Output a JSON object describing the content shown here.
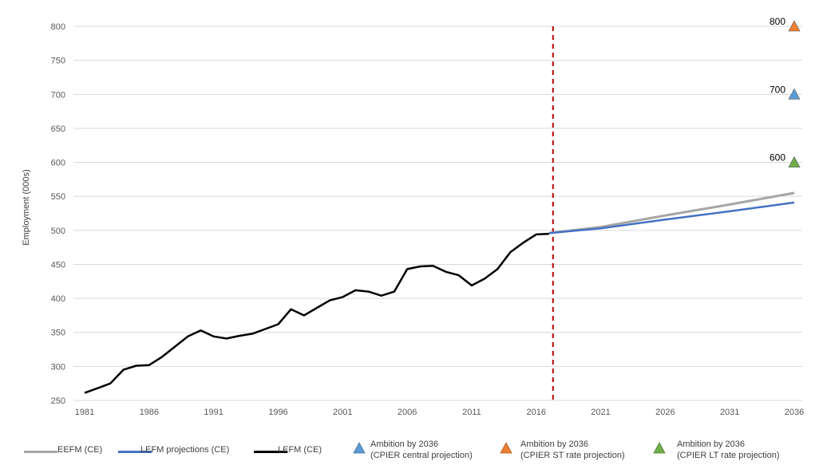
{
  "chart_data": {
    "type": "line",
    "ylabel": "Employment (000s)",
    "ylim": [
      250,
      800
    ],
    "xlim": [
      1981,
      2036
    ],
    "yticks": [
      "250",
      "300",
      "350",
      "400",
      "450",
      "500",
      "550",
      "600",
      "650",
      "700",
      "750",
      "800"
    ],
    "xticks": [
      "1981",
      "1986",
      "1991",
      "1996",
      "2001",
      "2006",
      "2011",
      "2016",
      "2021",
      "2026",
      "2031",
      "2036"
    ],
    "grid": true,
    "legend_position": "bottom",
    "divider_year": 2017.3,
    "series": [
      {
        "name": "EEFM (CE)",
        "color": "#a6a6a6",
        "x": [
          2017,
          2021,
          2026,
          2031,
          2036
        ],
        "y": [
          496,
          505,
          522,
          538,
          555
        ]
      },
      {
        "name": "LEFM projections (CE)",
        "color": "#4472c4",
        "x": [
          2017,
          2021,
          2026,
          2031,
          2036
        ],
        "y": [
          496,
          503,
          516,
          528,
          541
        ]
      },
      {
        "name": "LEFM (CE)",
        "color": "#000000",
        "x": [
          1981,
          1982,
          1983,
          1984,
          1985,
          1986,
          1987,
          1988,
          1989,
          1990,
          1991,
          1992,
          1993,
          1994,
          1995,
          1996,
          1997,
          1998,
          1999,
          2000,
          2001,
          2002,
          2003,
          2004,
          2005,
          2006,
          2007,
          2008,
          2009,
          2010,
          2011,
          2012,
          2013,
          2014,
          2015,
          2016,
          2017
        ],
        "y": [
          261,
          268,
          275,
          295,
          301,
          302,
          314,
          329,
          344,
          353,
          344,
          341,
          345,
          348,
          355,
          362,
          384,
          375,
          386,
          397,
          402,
          412,
          410,
          404,
          410,
          443,
          447,
          448,
          439,
          434,
          419,
          429,
          443,
          468,
          482,
          494,
          495
        ]
      }
    ],
    "markers": [
      {
        "name": "Ambition by 2036",
        "sub": "(CPIER central projection)",
        "x": 2036,
        "y": 700,
        "label": "700",
        "color": "#5b9bd5"
      },
      {
        "name": "Ambition by 2036",
        "sub": "(CPIER ST rate projection)",
        "x": 2036,
        "y": 800,
        "label": "800",
        "color": "#ed7d31"
      },
      {
        "name": "Ambition by 2036",
        "sub": "(CPIER LT rate projection)",
        "x": 2036,
        "y": 600,
        "label": "600",
        "color": "#70ad47"
      }
    ]
  }
}
